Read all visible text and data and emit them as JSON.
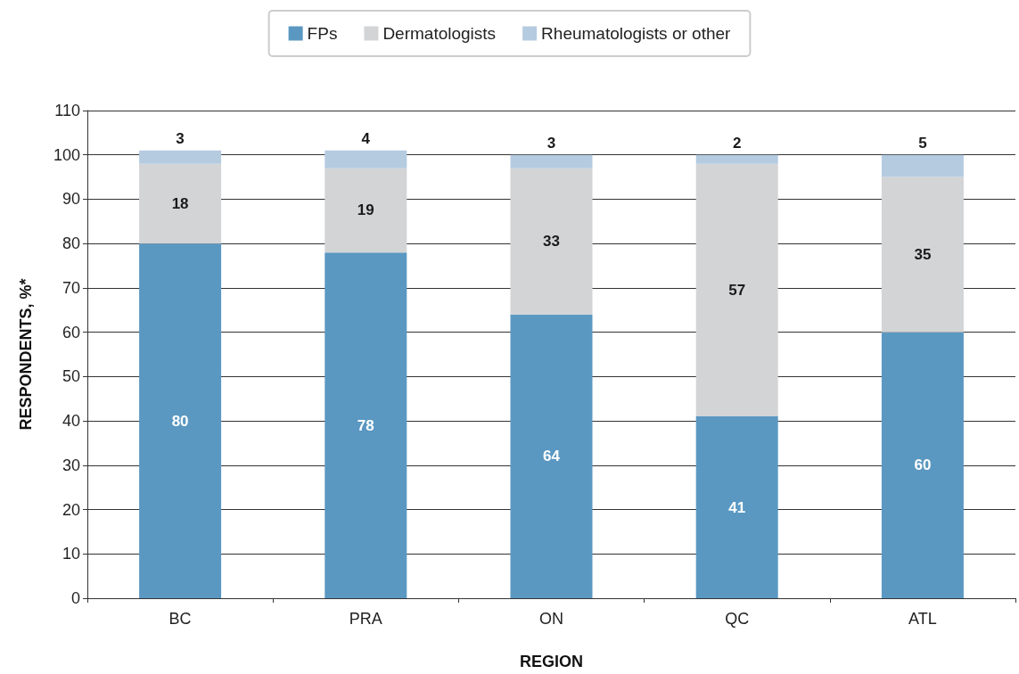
{
  "chart_data": {
    "type": "bar",
    "stacked": true,
    "xlabel": "REGION",
    "ylabel": "RESPONDENTS, %*",
    "categories": [
      "BC",
      "PRA",
      "ON",
      "QC",
      "ATL"
    ],
    "series": [
      {
        "name": "FPs",
        "color": "#5a98c2",
        "values": [
          80,
          78,
          64,
          41,
          60
        ]
      },
      {
        "name": "Dermatologists",
        "color": "#d3d4d6",
        "values": [
          18,
          19,
          33,
          57,
          35
        ]
      },
      {
        "name": "Rheumatologists or other",
        "color": "#b5cbe0",
        "values": [
          3,
          4,
          3,
          2,
          5
        ]
      }
    ],
    "ylim": [
      0,
      110
    ],
    "yticks": [
      0,
      10,
      20,
      30,
      40,
      50,
      60,
      70,
      80,
      90,
      100,
      110
    ],
    "grid": "y",
    "legend": "top",
    "data_labels": true
  }
}
